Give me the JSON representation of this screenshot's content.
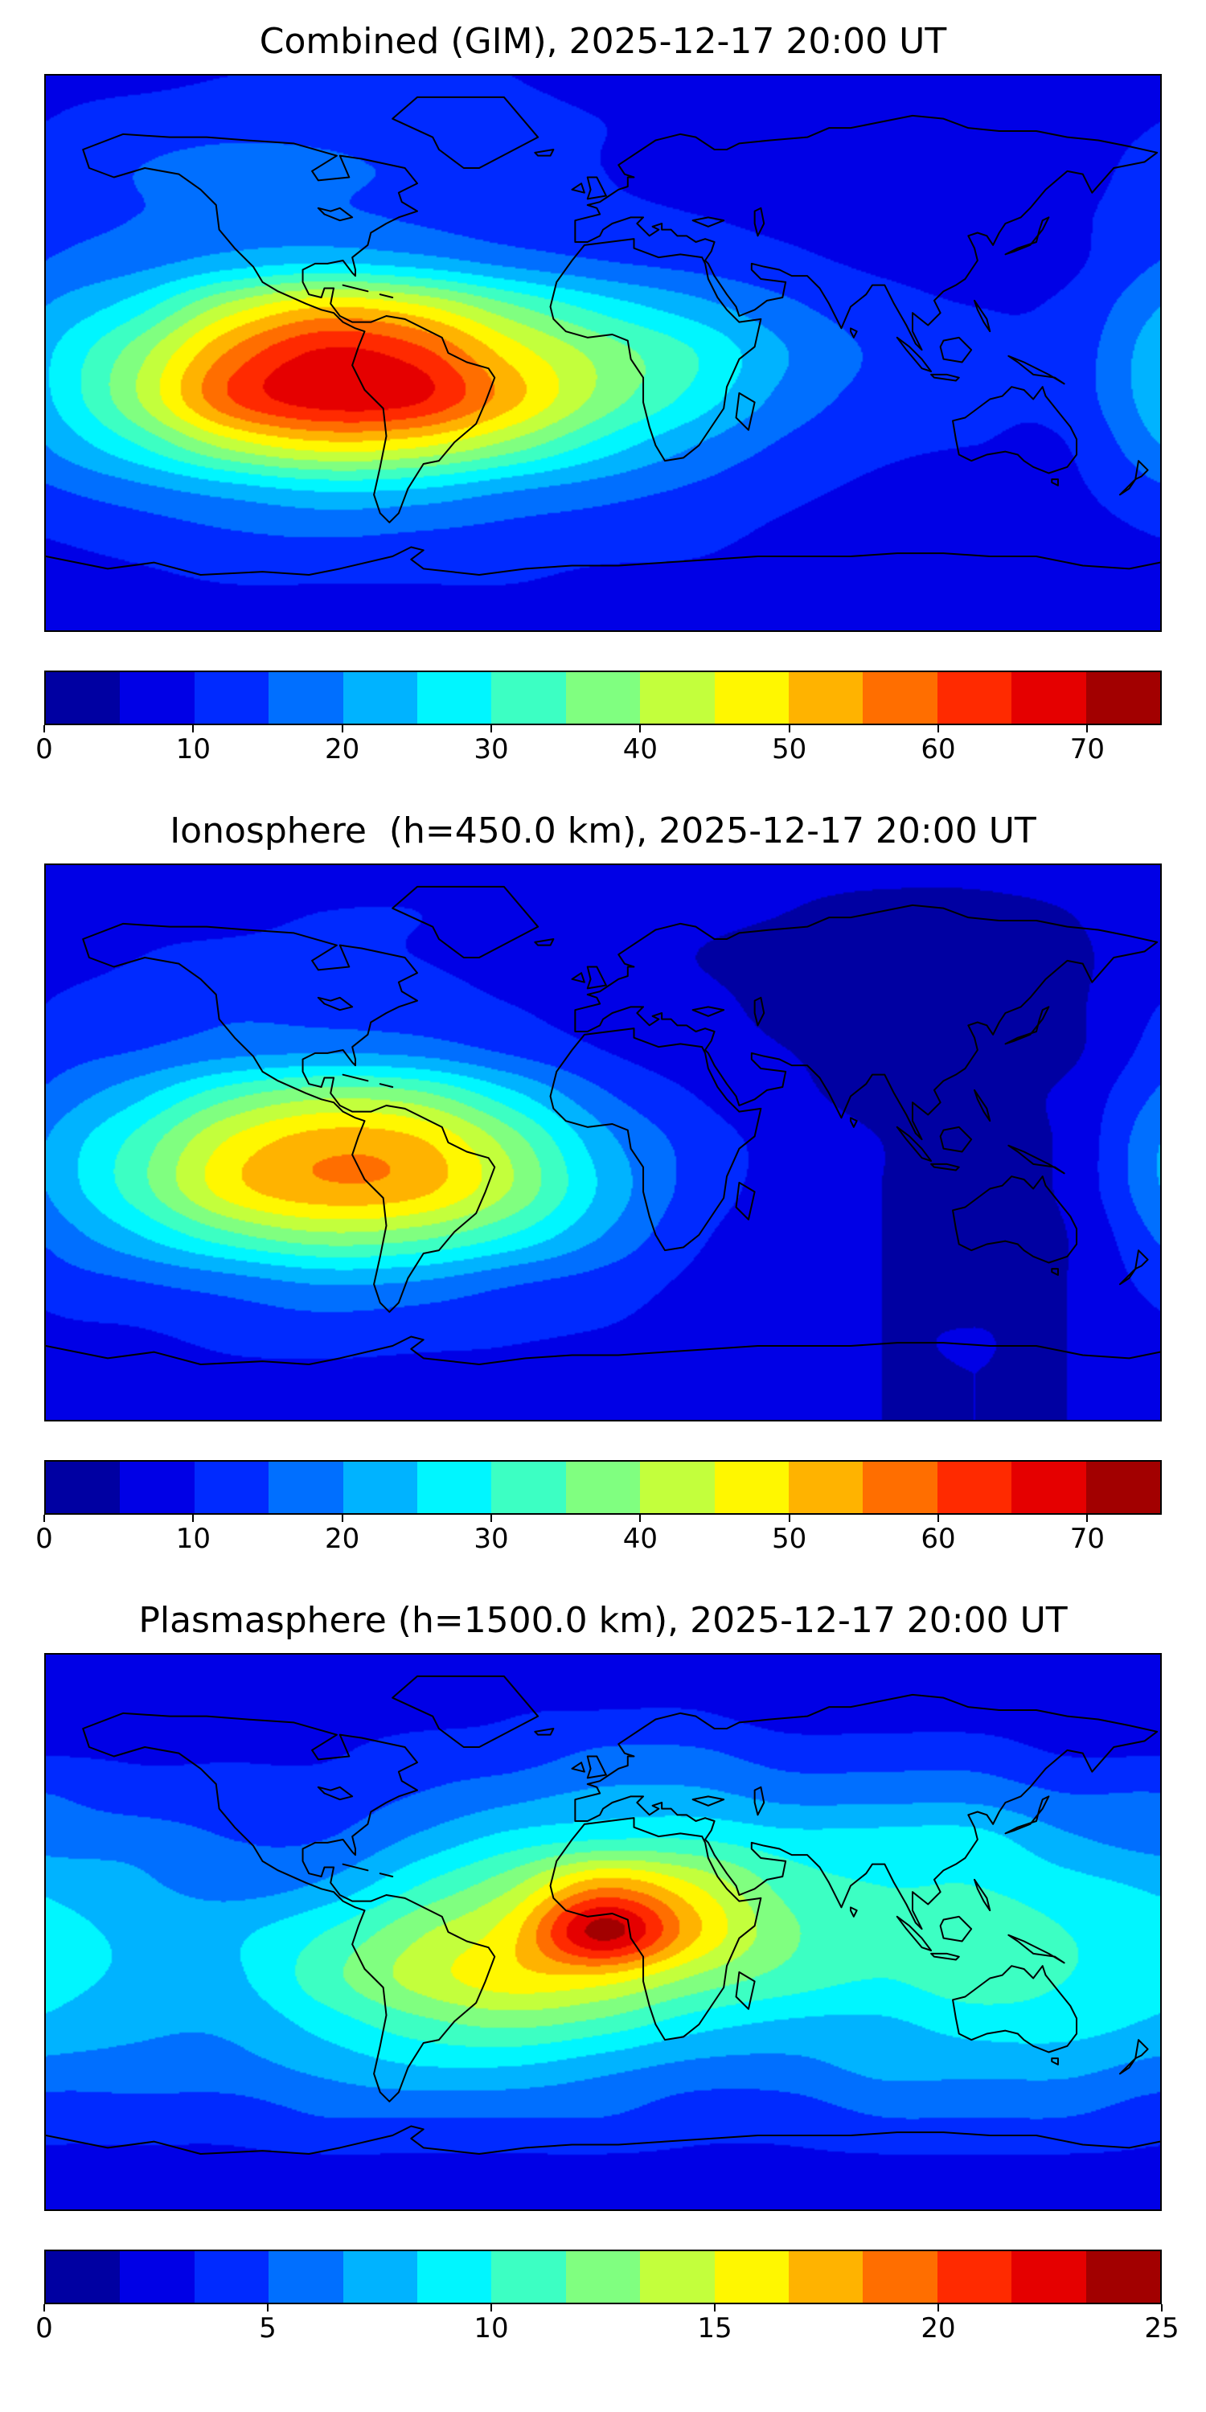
{
  "page": {
    "background": "#ffffff"
  },
  "chart_data": [
    {
      "type": "heatmap",
      "title": "Combined (GIM), 2025-12-17 20:00 UT",
      "colormap": "jet",
      "projection": "equirectangular",
      "lon_range": [
        -180,
        180
      ],
      "lat_range": [
        -90,
        90
      ],
      "vmin": 0,
      "vmax": 75,
      "n_levels": 15,
      "colorbar_ticks": [
        0,
        10,
        20,
        30,
        40,
        50,
        60,
        70
      ],
      "lats": [
        90,
        75,
        60,
        45,
        30,
        15,
        0,
        -15,
        -30,
        -45,
        -60,
        -75,
        -90
      ],
      "lons": [
        -180,
        -150,
        -120,
        -90,
        -60,
        -30,
        0,
        30,
        60,
        90,
        120,
        150,
        180
      ],
      "values": [
        [
          9,
          9,
          10,
          10,
          10,
          10,
          9,
          8,
          7,
          7,
          7,
          8,
          9
        ],
        [
          10,
          12,
          13,
          13,
          12,
          11,
          10,
          9,
          8,
          7,
          7,
          8,
          10
        ],
        [
          12,
          15,
          17,
          16,
          14,
          12,
          10,
          9,
          8,
          7,
          7,
          8,
          12
        ],
        [
          13,
          15,
          17,
          16,
          14,
          12,
          11,
          10,
          9,
          8,
          8,
          9,
          13
        ],
        [
          15,
          18,
          22,
          24,
          22,
          18,
          15,
          13,
          11,
          9,
          8,
          9,
          15
        ],
        [
          20,
          28,
          42,
          50,
          46,
          36,
          28,
          22,
          16,
          12,
          10,
          11,
          20
        ],
        [
          24,
          38,
          56,
          66,
          62,
          48,
          38,
          30,
          20,
          14,
          11,
          12,
          24
        ],
        [
          24,
          40,
          60,
          68,
          66,
          52,
          38,
          28,
          18,
          13,
          11,
          12,
          24
        ],
        [
          20,
          30,
          42,
          48,
          46,
          38,
          28,
          20,
          14,
          11,
          10,
          10,
          20
        ],
        [
          14,
          18,
          22,
          25,
          24,
          20,
          17,
          14,
          11,
          9,
          8,
          9,
          14
        ],
        [
          10,
          12,
          14,
          15,
          14,
          13,
          12,
          11,
          9,
          8,
          8,
          8,
          10
        ],
        [
          8,
          9,
          10,
          10,
          10,
          10,
          9,
          9,
          8,
          7,
          7,
          7,
          8
        ],
        [
          7,
          8,
          8,
          8,
          8,
          8,
          8,
          8,
          7,
          7,
          7,
          7,
          7
        ]
      ]
    },
    {
      "type": "heatmap",
      "title": "Ionosphere  (h=450.0 km), 2025-12-17 20:00 UT",
      "colormap": "jet",
      "projection": "equirectangular",
      "lon_range": [
        -180,
        180
      ],
      "lat_range": [
        -90,
        90
      ],
      "vmin": 0,
      "vmax": 75,
      "n_levels": 15,
      "colorbar_ticks": [
        0,
        10,
        20,
        30,
        40,
        50,
        60,
        70
      ],
      "lats": [
        90,
        75,
        60,
        45,
        30,
        15,
        0,
        -15,
        -30,
        -45,
        -60,
        -75,
        -90
      ],
      "lons": [
        -180,
        -150,
        -120,
        -90,
        -60,
        -30,
        0,
        30,
        60,
        90,
        120,
        150,
        180
      ],
      "values": [
        [
          8,
          8,
          8,
          8,
          9,
          9,
          8,
          7,
          6,
          6,
          6,
          7,
          8
        ],
        [
          8,
          9,
          9,
          10,
          10,
          9,
          8,
          6,
          5,
          4,
          4,
          5,
          8
        ],
        [
          8,
          10,
          11,
          11,
          10,
          9,
          7,
          5,
          4,
          3,
          3,
          4,
          8
        ],
        [
          10,
          12,
          14,
          13,
          12,
          10,
          8,
          6,
          4,
          3,
          3,
          4,
          10
        ],
        [
          12,
          15,
          18,
          19,
          18,
          14,
          10,
          7,
          5,
          4,
          4,
          4,
          12
        ],
        [
          16,
          24,
          34,
          39,
          37,
          27,
          16,
          10,
          6,
          4,
          4,
          6,
          16
        ],
        [
          20,
          32,
          46,
          53,
          51,
          38,
          22,
          13,
          8,
          5,
          4,
          6,
          20
        ],
        [
          20,
          33,
          48,
          54,
          52,
          40,
          24,
          13,
          8,
          5,
          4,
          6,
          20
        ],
        [
          16,
          25,
          34,
          39,
          37,
          30,
          20,
          11,
          7,
          5,
          4,
          5,
          16
        ],
        [
          12,
          15,
          18,
          21,
          20,
          16,
          13,
          9,
          6,
          5,
          4,
          5,
          12
        ],
        [
          9,
          10,
          12,
          13,
          12,
          11,
          10,
          8,
          6,
          5,
          5,
          5,
          9
        ],
        [
          7,
          8,
          9,
          9,
          9,
          9,
          8,
          7,
          6,
          5,
          5,
          5,
          7
        ],
        [
          6,
          7,
          7,
          7,
          7,
          7,
          7,
          6,
          6,
          5,
          5,
          5,
          6
        ]
      ]
    },
    {
      "type": "heatmap",
      "title": "Plasmasphere (h=1500.0 km), 2025-12-17 20:00 UT",
      "colormap": "jet",
      "projection": "equirectangular",
      "lon_range": [
        -180,
        180
      ],
      "lat_range": [
        -90,
        90
      ],
      "vmin": 0,
      "vmax": 25,
      "n_levels": 15,
      "colorbar_ticks": [
        0,
        5,
        10,
        15,
        20,
        25
      ],
      "lats": [
        90,
        75,
        60,
        45,
        30,
        15,
        0,
        -15,
        -30,
        -45,
        -60,
        -75,
        -90
      ],
      "lons": [
        -180,
        -150,
        -120,
        -90,
        -60,
        -30,
        0,
        30,
        60,
        90,
        120,
        150,
        180
      ],
      "values": [
        [
          2,
          2,
          2,
          2,
          2,
          2,
          2,
          2,
          2,
          2,
          2,
          2,
          2
        ],
        [
          2,
          2,
          2,
          2,
          2,
          3,
          3,
          3,
          2,
          2,
          2,
          2,
          2
        ],
        [
          3,
          3,
          3,
          3,
          4,
          4,
          5,
          5,
          4,
          4,
          4,
          3,
          3
        ],
        [
          5,
          4,
          4,
          4,
          5,
          6,
          7,
          7,
          6,
          6,
          6,
          5,
          5
        ],
        [
          6,
          6,
          5,
          5,
          7,
          9,
          10,
          10,
          9,
          9,
          9,
          7,
          6
        ],
        [
          8,
          7,
          6,
          7,
          10,
          13,
          18,
          15,
          11,
          10,
          10,
          9,
          8
        ],
        [
          9,
          8,
          8,
          10,
          13,
          16,
          24,
          17,
          12,
          11,
          11,
          10,
          9
        ],
        [
          9,
          8,
          8,
          11,
          14,
          16,
          16,
          13,
          11,
          10,
          11,
          10,
          9
        ],
        [
          8,
          7,
          7,
          9,
          11,
          12,
          11,
          9,
          8,
          8,
          9,
          9,
          8
        ],
        [
          6,
          6,
          6,
          7,
          8,
          8,
          7,
          6,
          6,
          7,
          7,
          7,
          6
        ],
        [
          4,
          4,
          4,
          5,
          5,
          5,
          5,
          4,
          4,
          5,
          5,
          5,
          4
        ],
        [
          3,
          3,
          3,
          3,
          3,
          3,
          3,
          3,
          3,
          3,
          3,
          3,
          3
        ],
        [
          2,
          2,
          2,
          2,
          2,
          2,
          2,
          2,
          2,
          2,
          2,
          2,
          2
        ]
      ]
    }
  ]
}
